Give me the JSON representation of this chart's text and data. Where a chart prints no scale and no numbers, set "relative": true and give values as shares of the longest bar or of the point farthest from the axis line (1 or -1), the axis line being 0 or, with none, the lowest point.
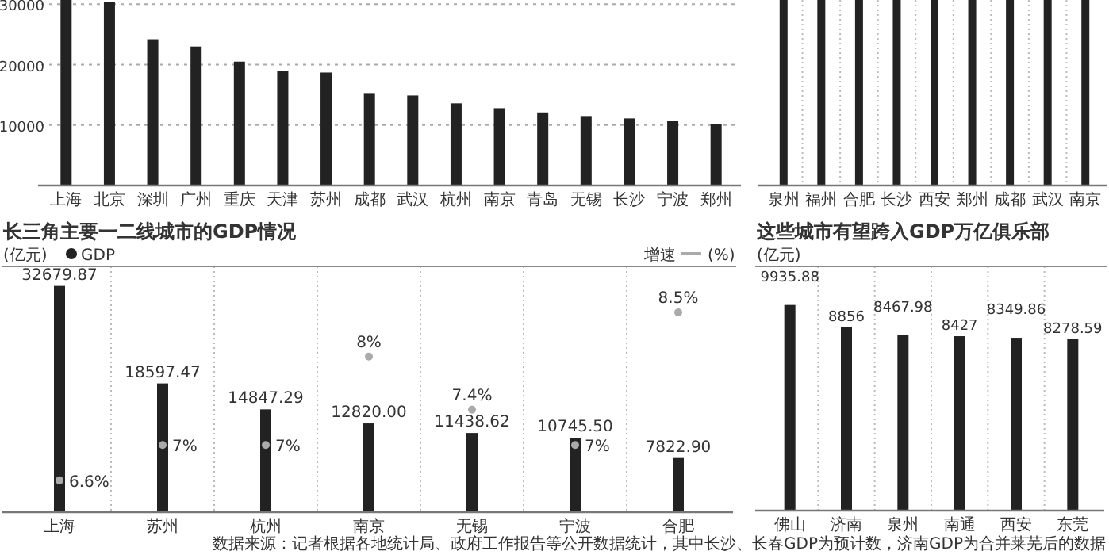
{
  "chart_data": [
    {
      "type": "bar",
      "categories": [
        "上海",
        "北京",
        "深圳",
        "广州",
        "重庆",
        "天津",
        "苏州",
        "成都",
        "武汉",
        "杭州",
        "南京",
        "青岛",
        "无锡",
        "长沙",
        "宁波",
        "郑州"
      ],
      "values": [
        30700,
        30400,
        24200,
        23000,
        20500,
        19000,
        18700,
        15300,
        14900,
        13600,
        12800,
        12100,
        11500,
        11100,
        10700,
        10100
      ],
      "color": "#222222",
      "ylim": [
        0,
        30700
      ],
      "yticks": [
        10000,
        20000,
        30000
      ],
      "grid": "y"
    },
    {
      "type": "bar",
      "relative": true,
      "categories": [
        "泉州",
        "福州",
        "合肥",
        "长沙",
        "西安",
        "郑州",
        "成都",
        "武汉",
        "南京"
      ],
      "values": [
        1,
        1,
        1,
        1,
        1,
        1,
        1,
        1,
        1
      ],
      "color": "#222222",
      "grid": "x"
    },
    {
      "type": "bar",
      "title": "长三角主要一二线城市的GDP情况",
      "ylabel": "(亿元)",
      "y2label": "(%)",
      "categories": [
        "上海",
        "苏州",
        "杭州",
        "南京",
        "无锡",
        "宁波",
        "合肥"
      ],
      "series": [
        {
          "name": "GDP",
          "color": "#222222",
          "values": [
            32679.87,
            18597.47,
            14847.29,
            12820.0,
            11438.62,
            10745.5,
            7822.9
          ],
          "value_labels": [
            "32679.87",
            "18597.47",
            "14847.29",
            "12820.00",
            "11438.62",
            "10745.50",
            "7822.90"
          ]
        },
        {
          "name": "增速",
          "type": "scatter",
          "axis": "y2",
          "color": "#aaaaaa",
          "values": [
            6.6,
            7,
            7,
            8,
            7.4,
            7,
            8.5
          ],
          "value_labels": [
            "6.6%",
            "7%",
            "7%",
            "8%",
            "7.4%",
            "7%",
            "8.5%"
          ]
        }
      ],
      "ylim": [
        0,
        35500
      ],
      "y2lim": [
        6.24,
        9.02
      ],
      "tick_labels": "x",
      "grid": "x",
      "legend": "top",
      "annotations": [
        "数据来源：记者根据各地统计局、政府工作报告等公开数据统计，其中长沙、长春GDP为预计数，济南GDP为合并莱芜后的数据"
      ]
    },
    {
      "type": "bar",
      "title": "这些城市有望跨入GDP万亿俱乐部",
      "ylabel": "(亿元)",
      "categories": [
        "佛山",
        "济南",
        "泉州",
        "南通",
        "西安",
        "东莞"
      ],
      "values": [
        9935.88,
        8856,
        8467.98,
        8427,
        8349.86,
        8278.59
      ],
      "value_labels": [
        "9935.88",
        "8856",
        "8467.98",
        "8427",
        "8349.86",
        "8278.59"
      ],
      "color": "#222222",
      "ylim": [
        0,
        11800
      ],
      "tick_labels": "x",
      "grid": "x"
    }
  ]
}
